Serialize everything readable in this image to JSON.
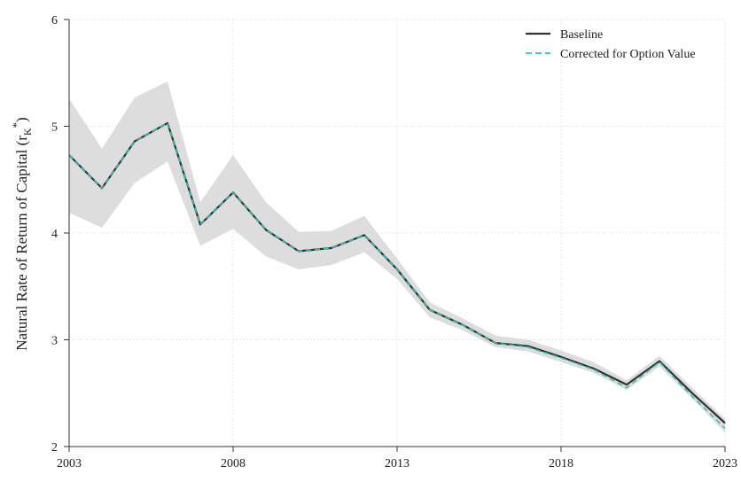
{
  "chart_data": {
    "type": "line",
    "title": "",
    "xlabel": "",
    "ylabel": "Natural Rate of Return of Capital (r",
    "ylabel_sub": "K",
    "ylabel_sup": "*",
    "ylabel_close": ")",
    "xlim": [
      2003,
      2023
    ],
    "ylim": [
      2,
      6
    ],
    "x_ticks": [
      2003,
      2008,
      2013,
      2018,
      2023
    ],
    "y_ticks": [
      2,
      3,
      4,
      5,
      6
    ],
    "x_tick_labels": [
      "2003",
      "2008",
      "2013",
      "2018",
      "2023"
    ],
    "y_tick_labels": [
      "2",
      "3",
      "4",
      "5",
      "6"
    ],
    "grid": true,
    "legend_position": "top-right",
    "x": [
      2003,
      2004,
      2005,
      2006,
      2007,
      2008,
      2009,
      2010,
      2011,
      2012,
      2013,
      2014,
      2015,
      2016,
      2017,
      2018,
      2019,
      2020,
      2021,
      2022,
      2023
    ],
    "band": {
      "upper": [
        5.26,
        4.79,
        5.27,
        5.42,
        4.29,
        4.73,
        4.29,
        4.01,
        4.02,
        4.16,
        3.76,
        3.35,
        3.2,
        3.04,
        3.0,
        2.9,
        2.79,
        2.62,
        2.85,
        2.55,
        2.26
      ],
      "lower": [
        4.19,
        4.05,
        4.47,
        4.67,
        3.88,
        4.04,
        3.78,
        3.66,
        3.7,
        3.82,
        3.57,
        3.21,
        3.09,
        2.93,
        2.89,
        2.79,
        2.69,
        2.53,
        2.75,
        2.45,
        2.13
      ],
      "color": "#dddddd"
    },
    "series": [
      {
        "name": "Baseline",
        "color": "#333333",
        "style": "solid",
        "values": [
          4.73,
          4.42,
          4.86,
          5.03,
          4.08,
          4.38,
          4.03,
          3.83,
          3.86,
          3.98,
          3.66,
          3.28,
          3.14,
          2.97,
          2.94,
          2.84,
          2.73,
          2.58,
          2.8,
          2.5,
          2.22
        ]
      },
      {
        "name": "Corrected for Option Value",
        "color": "#3bbfb2",
        "style": "dashed",
        "values": [
          4.73,
          4.42,
          4.86,
          5.03,
          4.08,
          4.38,
          4.03,
          3.83,
          3.86,
          3.98,
          3.66,
          3.28,
          3.14,
          2.97,
          2.93,
          2.83,
          2.72,
          2.55,
          2.79,
          2.47,
          2.17
        ]
      }
    ]
  }
}
